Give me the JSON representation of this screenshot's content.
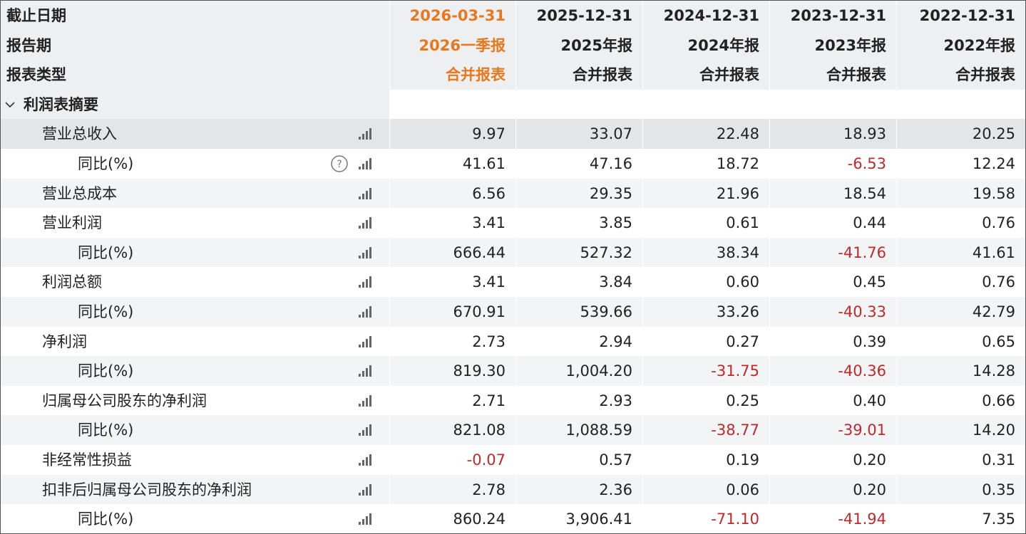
{
  "header": {
    "rows": [
      {
        "label": "截止日期",
        "values": [
          "2026-03-31",
          "2025-12-31",
          "2024-12-31",
          "2023-12-31",
          "2022-12-31"
        ]
      },
      {
        "label": "报告期",
        "values": [
          "2026一季报",
          "2025年报",
          "2024年报",
          "2023年报",
          "2022年报"
        ]
      },
      {
        "label": "报表类型",
        "values": [
          "合并报表",
          "合并报表",
          "合并报表",
          "合并报表",
          "合并报表"
        ]
      }
    ]
  },
  "section": {
    "title": "利润表摘要",
    "rows": [
      {
        "label": "营业总收入",
        "values": [
          "9.97",
          "33.07",
          "22.48",
          "18.93",
          "20.25"
        ],
        "yoy": {
          "label": "同比(%)",
          "values": [
            "41.61",
            "47.16",
            "18.72",
            "-6.53",
            "12.24"
          ]
        }
      },
      {
        "label": "营业总成本",
        "values": [
          "6.56",
          "29.35",
          "21.96",
          "18.54",
          "19.58"
        ]
      },
      {
        "label": "营业利润",
        "values": [
          "3.41",
          "3.85",
          "0.61",
          "0.44",
          "0.76"
        ],
        "yoy": {
          "label": "同比(%)",
          "values": [
            "666.44",
            "527.32",
            "38.34",
            "-41.76",
            "41.61"
          ]
        }
      },
      {
        "label": "利润总额",
        "values": [
          "3.41",
          "3.84",
          "0.60",
          "0.45",
          "0.76"
        ],
        "yoy": {
          "label": "同比(%)",
          "values": [
            "670.91",
            "539.66",
            "33.26",
            "-40.33",
            "42.79"
          ]
        }
      },
      {
        "label": "净利润",
        "values": [
          "2.73",
          "2.94",
          "0.27",
          "0.39",
          "0.65"
        ],
        "yoy": {
          "label": "同比(%)",
          "values": [
            "819.30",
            "1,004.20",
            "-31.75",
            "-40.36",
            "14.28"
          ]
        }
      },
      {
        "label": "归属母公司股东的净利润",
        "values": [
          "2.71",
          "2.93",
          "0.25",
          "0.40",
          "0.66"
        ],
        "yoy": {
          "label": "同比(%)",
          "values": [
            "821.08",
            "1,088.59",
            "-38.77",
            "-39.01",
            "14.20"
          ]
        }
      },
      {
        "label": "非经常性损益",
        "values": [
          "-0.07",
          "0.57",
          "0.19",
          "0.20",
          "0.31"
        ]
      },
      {
        "label": "扣非后归属母公司股东的净利润",
        "values": [
          "2.78",
          "2.36",
          "0.06",
          "0.20",
          "0.35"
        ],
        "yoy": {
          "label": "同比(%)",
          "values": [
            "860.24",
            "3,906.41",
            "-71.10",
            "-41.94",
            "7.35"
          ]
        }
      }
    ]
  }
}
